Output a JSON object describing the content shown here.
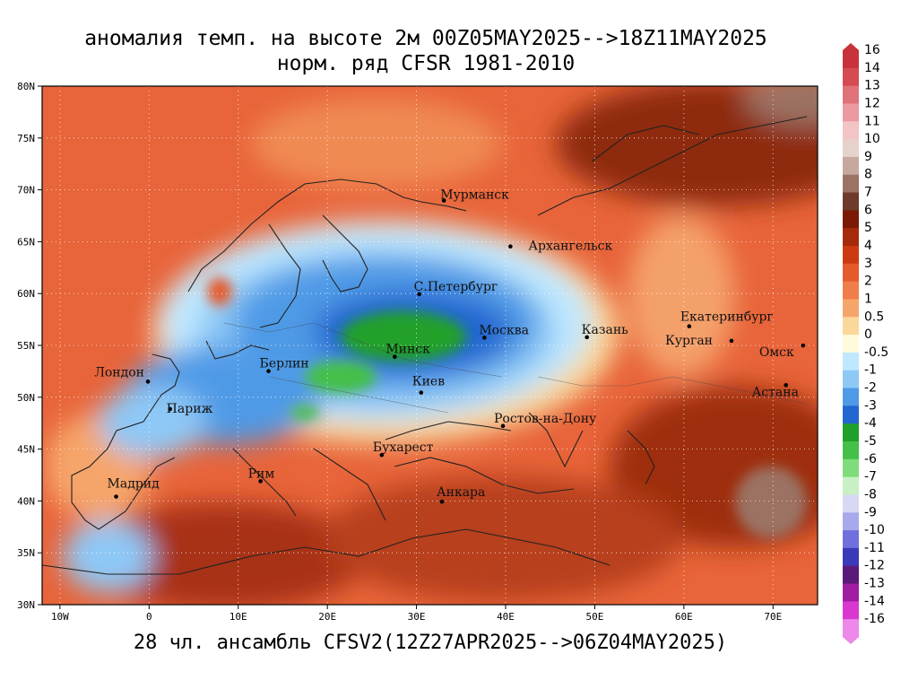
{
  "title_line1": "аномалия темп. на высоте 2м 00Z05MAY2025-->18Z11MAY2025",
  "title_line2": "норм. ряд CFSR 1981-2010",
  "footer": "28 чл. ансамбль CFSV2(12Z27APR2025-->06Z04MAY2025)",
  "lat_labels": [
    "80N",
    "75N",
    "70N",
    "65N",
    "60N",
    "55N",
    "50N",
    "45N",
    "40N",
    "35N",
    "30N"
  ],
  "lon_labels": [
    "10W",
    "0",
    "10E",
    "20E",
    "30E",
    "40E",
    "50E",
    "60E",
    "70E"
  ],
  "cities": [
    {
      "name": "Мурманск",
      "lat": 68.97,
      "lon": 33.08
    },
    {
      "name": "Архангельск",
      "lat": 64.54,
      "lon": 40.54
    },
    {
      "name": "С.Петербург",
      "lat": 59.94,
      "lon": 30.31
    },
    {
      "name": "Москва",
      "lat": 55.75,
      "lon": 37.62
    },
    {
      "name": "Казань",
      "lat": 55.79,
      "lon": 49.12
    },
    {
      "name": "Екатеринбург",
      "lat": 56.84,
      "lon": 60.6
    },
    {
      "name": "Курган",
      "lat": 55.44,
      "lon": 65.34
    },
    {
      "name": "Омск",
      "lat": 54.99,
      "lon": 73.37
    },
    {
      "name": "Астана",
      "lat": 51.17,
      "lon": 71.45
    },
    {
      "name": "Минск",
      "lat": 53.9,
      "lon": 27.56
    },
    {
      "name": "Берлин",
      "lat": 52.52,
      "lon": 13.4
    },
    {
      "name": "Лондон",
      "lat": 51.51,
      "lon": -0.13
    },
    {
      "name": "Париж",
      "lat": 48.86,
      "lon": 2.35
    },
    {
      "name": "Киев",
      "lat": 50.45,
      "lon": 30.52
    },
    {
      "name": "Ростов-на-Дону",
      "lat": 47.23,
      "lon": 39.7
    },
    {
      "name": "Бухарест",
      "lat": 44.43,
      "lon": 26.1
    },
    {
      "name": "Рим",
      "lat": 41.9,
      "lon": 12.5
    },
    {
      "name": "Мадрид",
      "lat": 40.42,
      "lon": -3.7
    },
    {
      "name": "Анкара",
      "lat": 39.93,
      "lon": 32.86
    }
  ],
  "colorbar": [
    {
      "label": "16",
      "color": "#c8323a"
    },
    {
      "label": "14",
      "color": "#d64a52"
    },
    {
      "label": "13",
      "color": "#e0727a"
    },
    {
      "label": "12",
      "color": "#ea9aa0"
    },
    {
      "label": "11",
      "color": "#f2c4c6"
    },
    {
      "label": "10",
      "color": "#e6d2cc"
    },
    {
      "label": "9",
      "color": "#c7a89e"
    },
    {
      "label": "8",
      "color": "#9c7264"
    },
    {
      "label": "7",
      "color": "#6e3a2a"
    },
    {
      "label": "6",
      "color": "#7a1a06"
    },
    {
      "label": "5",
      "color": "#a52a0a"
    },
    {
      "label": "4",
      "color": "#cc3a12"
    },
    {
      "label": "3",
      "color": "#e55a2a"
    },
    {
      "label": "2",
      "color": "#f07e4a"
    },
    {
      "label": "1",
      "color": "#f6a56a"
    },
    {
      "label": "0.5",
      "color": "#fad89a"
    },
    {
      "label": "0",
      "color": "#fffadc"
    },
    {
      "label": "-0.5",
      "color": "#bfe8ff"
    },
    {
      "label": "-1",
      "color": "#8ec8f6"
    },
    {
      "label": "-2",
      "color": "#4f9ae6"
    },
    {
      "label": "-3",
      "color": "#2266d0"
    },
    {
      "label": "-4",
      "color": "#20a02a"
    },
    {
      "label": "-5",
      "color": "#44c04a"
    },
    {
      "label": "-6",
      "color": "#7fdc7a"
    },
    {
      "label": "-7",
      "color": "#c8f0c4"
    },
    {
      "label": "-8",
      "color": "#d8d8f4"
    },
    {
      "label": "-9",
      "color": "#a8a8ec"
    },
    {
      "label": "-10",
      "color": "#7070dc"
    },
    {
      "label": "-11",
      "color": "#3a3ab8"
    },
    {
      "label": "-12",
      "color": "#5a1a7a"
    },
    {
      "label": "-13",
      "color": "#a01ca0"
    },
    {
      "label": "-14",
      "color": "#d838d0"
    },
    {
      "label": "-16",
      "color": "#ee88ea"
    }
  ]
}
